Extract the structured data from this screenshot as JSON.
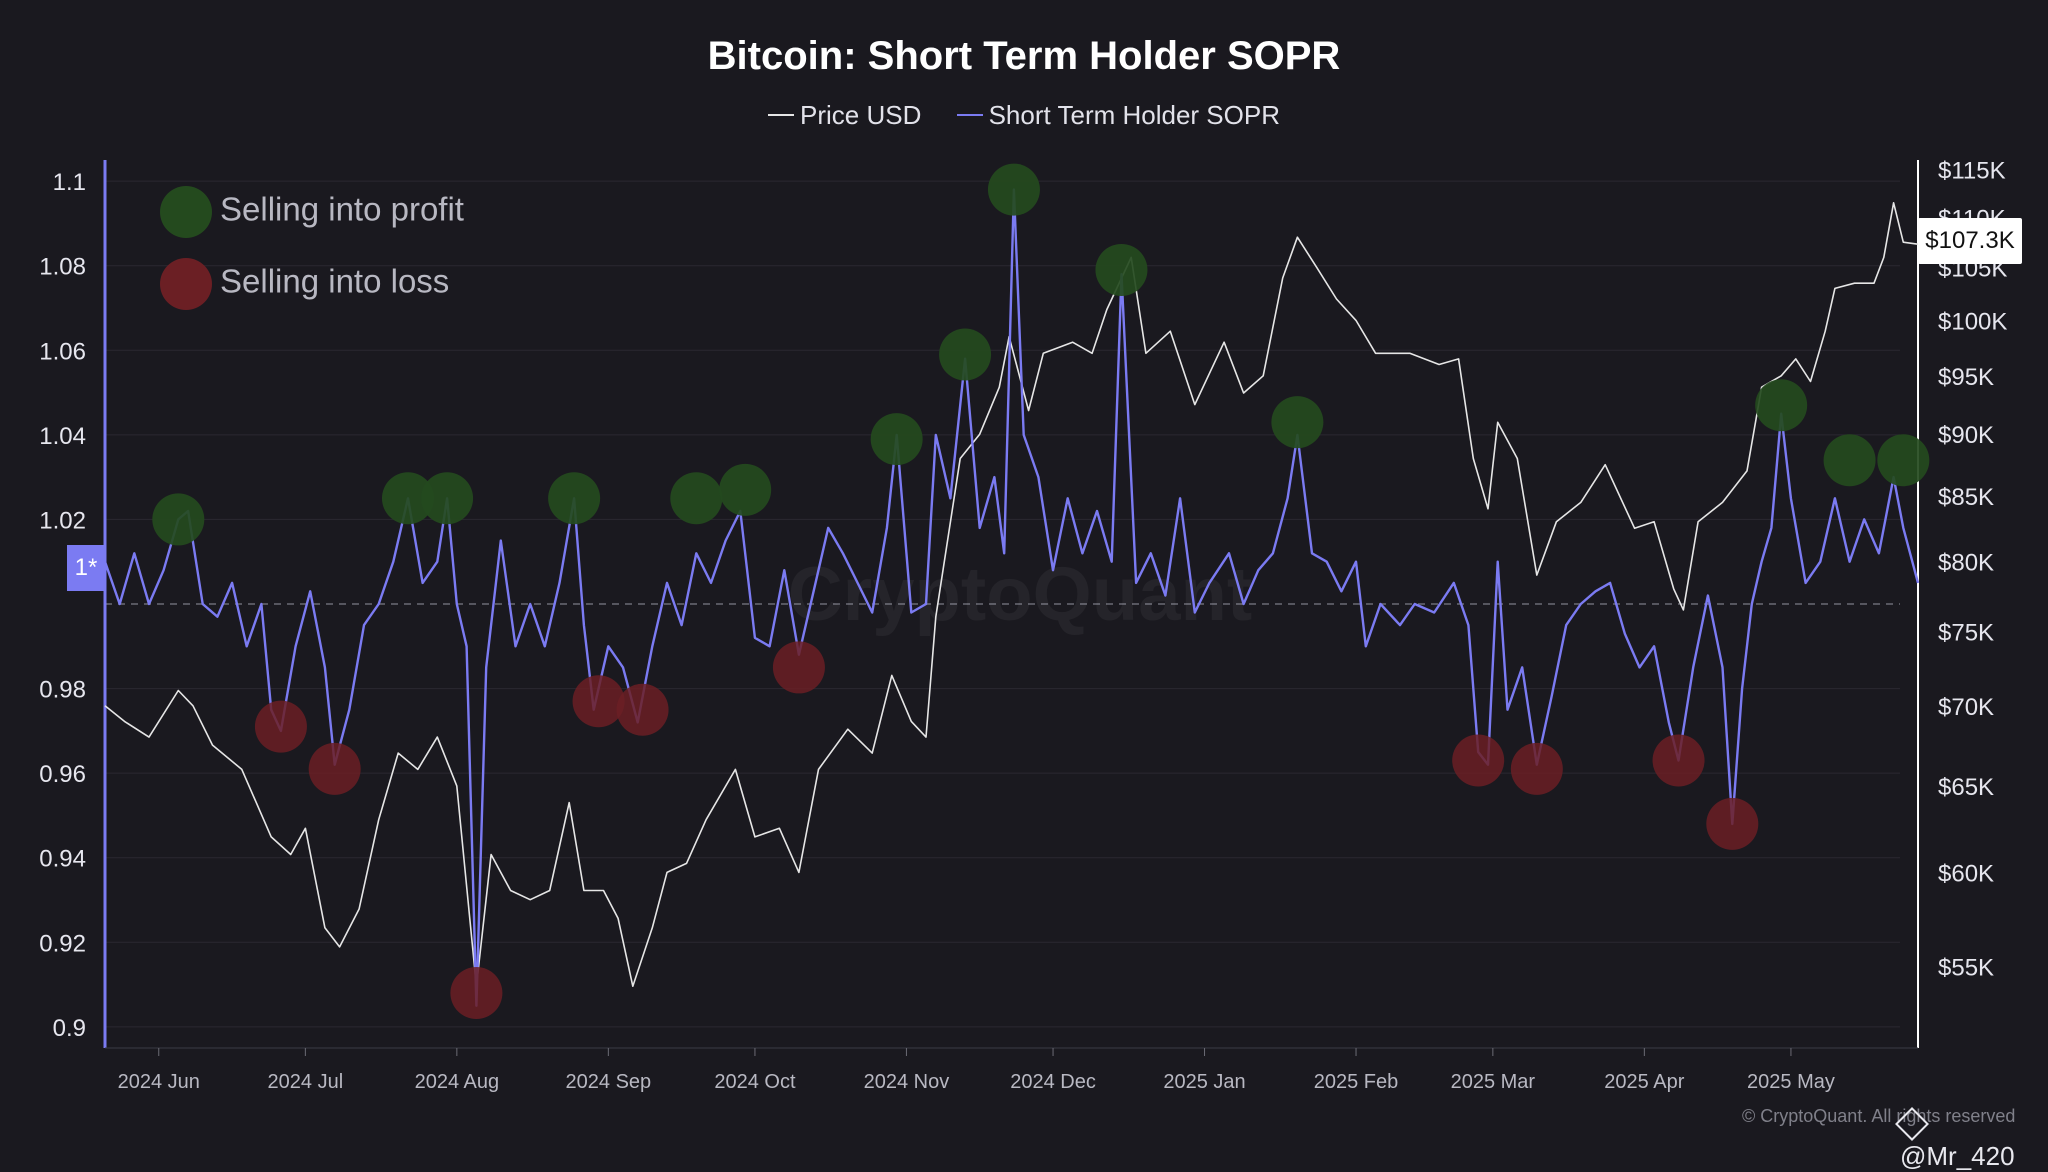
{
  "title": "Bitcoin: Short Term Holder SOPR",
  "legend": [
    {
      "name": "Price USD",
      "color": "#e6e6e6"
    },
    {
      "name": "Short Term Holder SOPR",
      "color": "#7b7bf2"
    }
  ],
  "key": {
    "profit": {
      "label": "Selling into profit",
      "color": "#244a1e"
    },
    "loss": {
      "label": "Selling into loss",
      "color": "#6b1f24"
    }
  },
  "price_tag": "$107.3K",
  "sopr_baseline_tag": "1*",
  "watermark": "CryptoQuant",
  "credit": "© CryptoQuant. All rights reserved",
  "username": "@Mr_420",
  "chart_data": {
    "type": "line",
    "title": "Bitcoin: Short Term Holder SOPR",
    "x_ticks": [
      "2024 Jun",
      "2024 Jul",
      "2024 Aug",
      "2024 Sep",
      "2024 Oct",
      "2024 Nov",
      "2024 Dec",
      "2025 Jan",
      "2025 Feb",
      "2025 Mar",
      "2025 Apr",
      "2025 May"
    ],
    "x_range": [
      "2024-05-21",
      "2025-05-27"
    ],
    "y_left": {
      "ticks": [
        0.9,
        0.92,
        0.94,
        0.96,
        0.98,
        1.02,
        1.04,
        1.06,
        1.08,
        1.1
      ],
      "range": [
        0.895,
        1.105
      ],
      "baseline": 1
    },
    "y_right": {
      "ticks": [
        "$55K",
        "$60K",
        "$65K",
        "$70K",
        "$75K",
        "$80K",
        "$85K",
        "$90K",
        "$95K",
        "$100K",
        "$105K",
        "$110K",
        "$115K"
      ],
      "tick_values": [
        55000,
        60000,
        65000,
        70000,
        75000,
        80000,
        85000,
        90000,
        95000,
        100000,
        105000,
        110000,
        115000
      ],
      "range": [
        51000,
        116000
      ],
      "scale": "log"
    },
    "series": [
      {
        "name": "Price USD",
        "axis": "right",
        "color": "#e6e6e6",
        "points": [
          [
            "2024-05-21",
            70000
          ],
          [
            "2024-05-25",
            69000
          ],
          [
            "2024-05-30",
            68000
          ],
          [
            "2024-06-05",
            71000
          ],
          [
            "2024-06-08",
            70000
          ],
          [
            "2024-06-12",
            67500
          ],
          [
            "2024-06-18",
            66000
          ],
          [
            "2024-06-24",
            62000
          ],
          [
            "2024-06-28",
            61000
          ],
          [
            "2024-07-01",
            62500
          ],
          [
            "2024-07-05",
            57000
          ],
          [
            "2024-07-08",
            56000
          ],
          [
            "2024-07-12",
            58000
          ],
          [
            "2024-07-16",
            63000
          ],
          [
            "2024-07-20",
            67000
          ],
          [
            "2024-07-24",
            66000
          ],
          [
            "2024-07-28",
            68000
          ],
          [
            "2024-08-01",
            65000
          ],
          [
            "2024-08-05",
            54000
          ],
          [
            "2024-08-08",
            61000
          ],
          [
            "2024-08-12",
            59000
          ],
          [
            "2024-08-16",
            58500
          ],
          [
            "2024-08-20",
            59000
          ],
          [
            "2024-08-24",
            64000
          ],
          [
            "2024-08-27",
            59000
          ],
          [
            "2024-08-31",
            59000
          ],
          [
            "2024-09-03",
            57500
          ],
          [
            "2024-09-06",
            54000
          ],
          [
            "2024-09-10",
            57000
          ],
          [
            "2024-09-13",
            60000
          ],
          [
            "2024-09-17",
            60500
          ],
          [
            "2024-09-21",
            63000
          ],
          [
            "2024-09-27",
            66000
          ],
          [
            "2024-10-01",
            62000
          ],
          [
            "2024-10-06",
            62500
          ],
          [
            "2024-10-10",
            60000
          ],
          [
            "2024-10-14",
            66000
          ],
          [
            "2024-10-20",
            68500
          ],
          [
            "2024-10-25",
            67000
          ],
          [
            "2024-10-29",
            72000
          ],
          [
            "2024-11-02",
            69000
          ],
          [
            "2024-11-05",
            68000
          ],
          [
            "2024-11-07",
            76000
          ],
          [
            "2024-11-12",
            88000
          ],
          [
            "2024-11-16",
            90000
          ],
          [
            "2024-11-20",
            94000
          ],
          [
            "2024-11-22",
            98500
          ],
          [
            "2024-11-26",
            92000
          ],
          [
            "2024-11-29",
            97000
          ],
          [
            "2024-12-05",
            98000
          ],
          [
            "2024-12-09",
            97000
          ],
          [
            "2024-12-12",
            101000
          ],
          [
            "2024-12-17",
            106000
          ],
          [
            "2024-12-20",
            97000
          ],
          [
            "2024-12-25",
            99000
          ],
          [
            "2024-12-30",
            92500
          ],
          [
            "2025-01-05",
            98000
          ],
          [
            "2025-01-09",
            93500
          ],
          [
            "2025-01-13",
            95000
          ],
          [
            "2025-01-17",
            104000
          ],
          [
            "2025-01-20",
            108000
          ],
          [
            "2025-01-24",
            105000
          ],
          [
            "2025-01-28",
            102000
          ],
          [
            "2025-02-01",
            100000
          ],
          [
            "2025-02-05",
            97000
          ],
          [
            "2025-02-12",
            97000
          ],
          [
            "2025-02-18",
            96000
          ],
          [
            "2025-02-22",
            96500
          ],
          [
            "2025-02-25",
            88000
          ],
          [
            "2025-02-28",
            84000
          ],
          [
            "2025-03-02",
            91000
          ],
          [
            "2025-03-06",
            88000
          ],
          [
            "2025-03-10",
            79000
          ],
          [
            "2025-03-14",
            83000
          ],
          [
            "2025-03-19",
            84500
          ],
          [
            "2025-03-24",
            87500
          ],
          [
            "2025-03-30",
            82500
          ],
          [
            "2025-04-03",
            83000
          ],
          [
            "2025-04-07",
            78000
          ],
          [
            "2025-04-09",
            76500
          ],
          [
            "2025-04-12",
            83000
          ],
          [
            "2025-04-17",
            84500
          ],
          [
            "2025-04-22",
            87000
          ],
          [
            "2025-04-25",
            94000
          ],
          [
            "2025-04-29",
            95000
          ],
          [
            "2025-05-02",
            96500
          ],
          [
            "2025-05-05",
            94500
          ],
          [
            "2025-05-08",
            99000
          ],
          [
            "2025-05-10",
            103000
          ],
          [
            "2025-05-14",
            103500
          ],
          [
            "2025-05-18",
            103500
          ],
          [
            "2025-05-20",
            106000
          ],
          [
            "2025-05-22",
            111500
          ],
          [
            "2025-05-24",
            107500
          ],
          [
            "2025-05-27",
            107300
          ]
        ]
      },
      {
        "name": "Short Term Holder SOPR",
        "axis": "left",
        "color": "#7b7bf2",
        "points": [
          [
            "2024-05-21",
            1.01
          ],
          [
            "2024-05-24",
            1.0
          ],
          [
            "2024-05-27",
            1.012
          ],
          [
            "2024-05-30",
            1.0
          ],
          [
            "2024-06-02",
            1.008
          ],
          [
            "2024-06-05",
            1.02
          ],
          [
            "2024-06-07",
            1.022
          ],
          [
            "2024-06-10",
            1.0
          ],
          [
            "2024-06-13",
            0.997
          ],
          [
            "2024-06-16",
            1.005
          ],
          [
            "2024-06-19",
            0.99
          ],
          [
            "2024-06-22",
            1.0
          ],
          [
            "2024-06-24",
            0.975
          ],
          [
            "2024-06-26",
            0.97
          ],
          [
            "2024-06-29",
            0.99
          ],
          [
            "2024-07-02",
            1.003
          ],
          [
            "2024-07-05",
            0.985
          ],
          [
            "2024-07-07",
            0.962
          ],
          [
            "2024-07-10",
            0.975
          ],
          [
            "2024-07-13",
            0.995
          ],
          [
            "2024-07-16",
            1.0
          ],
          [
            "2024-07-19",
            1.01
          ],
          [
            "2024-07-22",
            1.025
          ],
          [
            "2024-07-25",
            1.005
          ],
          [
            "2024-07-28",
            1.01
          ],
          [
            "2024-07-30",
            1.025
          ],
          [
            "2024-08-01",
            1.0
          ],
          [
            "2024-08-03",
            0.99
          ],
          [
            "2024-08-05",
            0.905
          ],
          [
            "2024-08-07",
            0.985
          ],
          [
            "2024-08-10",
            1.015
          ],
          [
            "2024-08-13",
            0.99
          ],
          [
            "2024-08-16",
            1.0
          ],
          [
            "2024-08-19",
            0.99
          ],
          [
            "2024-08-22",
            1.005
          ],
          [
            "2024-08-25",
            1.025
          ],
          [
            "2024-08-27",
            0.995
          ],
          [
            "2024-08-29",
            0.975
          ],
          [
            "2024-09-01",
            0.99
          ],
          [
            "2024-09-04",
            0.985
          ],
          [
            "2024-09-07",
            0.972
          ],
          [
            "2024-09-10",
            0.99
          ],
          [
            "2024-09-13",
            1.005
          ],
          [
            "2024-09-16",
            0.995
          ],
          [
            "2024-09-19",
            1.012
          ],
          [
            "2024-09-22",
            1.005
          ],
          [
            "2024-09-25",
            1.015
          ],
          [
            "2024-09-28",
            1.022
          ],
          [
            "2024-10-01",
            0.992
          ],
          [
            "2024-10-04",
            0.99
          ],
          [
            "2024-10-07",
            1.008
          ],
          [
            "2024-10-10",
            0.988
          ],
          [
            "2024-10-13",
            1.003
          ],
          [
            "2024-10-16",
            1.018
          ],
          [
            "2024-10-19",
            1.012
          ],
          [
            "2024-10-22",
            1.005
          ],
          [
            "2024-10-25",
            0.998
          ],
          [
            "2024-10-28",
            1.018
          ],
          [
            "2024-10-30",
            1.04
          ],
          [
            "2024-11-02",
            0.998
          ],
          [
            "2024-11-05",
            1.0
          ],
          [
            "2024-11-07",
            1.04
          ],
          [
            "2024-11-10",
            1.025
          ],
          [
            "2024-11-13",
            1.058
          ],
          [
            "2024-11-16",
            1.018
          ],
          [
            "2024-11-19",
            1.03
          ],
          [
            "2024-11-21",
            1.012
          ],
          [
            "2024-11-23",
            1.098
          ],
          [
            "2024-11-25",
            1.04
          ],
          [
            "2024-11-28",
            1.03
          ],
          [
            "2024-12-01",
            1.008
          ],
          [
            "2024-12-04",
            1.025
          ],
          [
            "2024-12-07",
            1.012
          ],
          [
            "2024-12-10",
            1.022
          ],
          [
            "2024-12-13",
            1.01
          ],
          [
            "2024-12-15",
            1.078
          ],
          [
            "2024-12-18",
            1.005
          ],
          [
            "2024-12-21",
            1.012
          ],
          [
            "2024-12-24",
            1.002
          ],
          [
            "2024-12-27",
            1.025
          ],
          [
            "2024-12-30",
            0.998
          ],
          [
            "2025-01-02",
            1.005
          ],
          [
            "2025-01-06",
            1.012
          ],
          [
            "2025-01-09",
            1.0
          ],
          [
            "2025-01-12",
            1.008
          ],
          [
            "2025-01-15",
            1.012
          ],
          [
            "2025-01-18",
            1.025
          ],
          [
            "2025-01-20",
            1.04
          ],
          [
            "2025-01-23",
            1.012
          ],
          [
            "2025-01-26",
            1.01
          ],
          [
            "2025-01-29",
            1.003
          ],
          [
            "2025-02-01",
            1.01
          ],
          [
            "2025-02-03",
            0.99
          ],
          [
            "2025-02-06",
            1.0
          ],
          [
            "2025-02-10",
            0.995
          ],
          [
            "2025-02-13",
            1.0
          ],
          [
            "2025-02-17",
            0.998
          ],
          [
            "2025-02-21",
            1.005
          ],
          [
            "2025-02-24",
            0.995
          ],
          [
            "2025-02-26",
            0.965
          ],
          [
            "2025-02-28",
            0.962
          ],
          [
            "2025-03-02",
            1.01
          ],
          [
            "2025-03-04",
            0.975
          ],
          [
            "2025-03-07",
            0.985
          ],
          [
            "2025-03-10",
            0.962
          ],
          [
            "2025-03-13",
            0.978
          ],
          [
            "2025-03-16",
            0.995
          ],
          [
            "2025-03-19",
            1.0
          ],
          [
            "2025-03-22",
            1.003
          ],
          [
            "2025-03-25",
            1.005
          ],
          [
            "2025-03-28",
            0.993
          ],
          [
            "2025-03-31",
            0.985
          ],
          [
            "2025-04-03",
            0.99
          ],
          [
            "2025-04-06",
            0.972
          ],
          [
            "2025-04-08",
            0.963
          ],
          [
            "2025-04-11",
            0.985
          ],
          [
            "2025-04-14",
            1.002
          ],
          [
            "2025-04-17",
            0.985
          ],
          [
            "2025-04-19",
            0.948
          ],
          [
            "2025-04-21",
            0.98
          ],
          [
            "2025-04-23",
            1.0
          ],
          [
            "2025-04-25",
            1.01
          ],
          [
            "2025-04-27",
            1.018
          ],
          [
            "2025-04-29",
            1.045
          ],
          [
            "2025-05-01",
            1.025
          ],
          [
            "2025-05-04",
            1.005
          ],
          [
            "2025-05-07",
            1.01
          ],
          [
            "2025-05-10",
            1.025
          ],
          [
            "2025-05-13",
            1.01
          ],
          [
            "2025-05-16",
            1.02
          ],
          [
            "2025-05-19",
            1.012
          ],
          [
            "2025-05-22",
            1.03
          ],
          [
            "2025-05-24",
            1.018
          ],
          [
            "2025-05-27",
            1.005
          ]
        ]
      }
    ],
    "markers": {
      "profit": [
        [
          "2024-06-05",
          1.02
        ],
        [
          "2024-07-22",
          1.025
        ],
        [
          "2024-07-30",
          1.025
        ],
        [
          "2024-08-25",
          1.025
        ],
        [
          "2024-09-19",
          1.025
        ],
        [
          "2024-09-29",
          1.027
        ],
        [
          "2024-10-30",
          1.039
        ],
        [
          "2024-11-13",
          1.059
        ],
        [
          "2024-11-23",
          1.098
        ],
        [
          "2024-12-15",
          1.079
        ],
        [
          "2025-01-20",
          1.043
        ],
        [
          "2025-04-29",
          1.047
        ],
        [
          "2025-05-13",
          1.034
        ],
        [
          "2025-05-24",
          1.034
        ]
      ],
      "loss": [
        [
          "2024-06-26",
          0.971
        ],
        [
          "2024-07-07",
          0.961
        ],
        [
          "2024-08-05",
          0.908
        ],
        [
          "2024-08-30",
          0.977
        ],
        [
          "2024-09-08",
          0.975
        ],
        [
          "2024-10-10",
          0.985
        ],
        [
          "2025-02-26",
          0.963
        ],
        [
          "2025-03-10",
          0.961
        ],
        [
          "2025-04-08",
          0.963
        ],
        [
          "2025-04-19",
          0.948
        ]
      ]
    }
  }
}
